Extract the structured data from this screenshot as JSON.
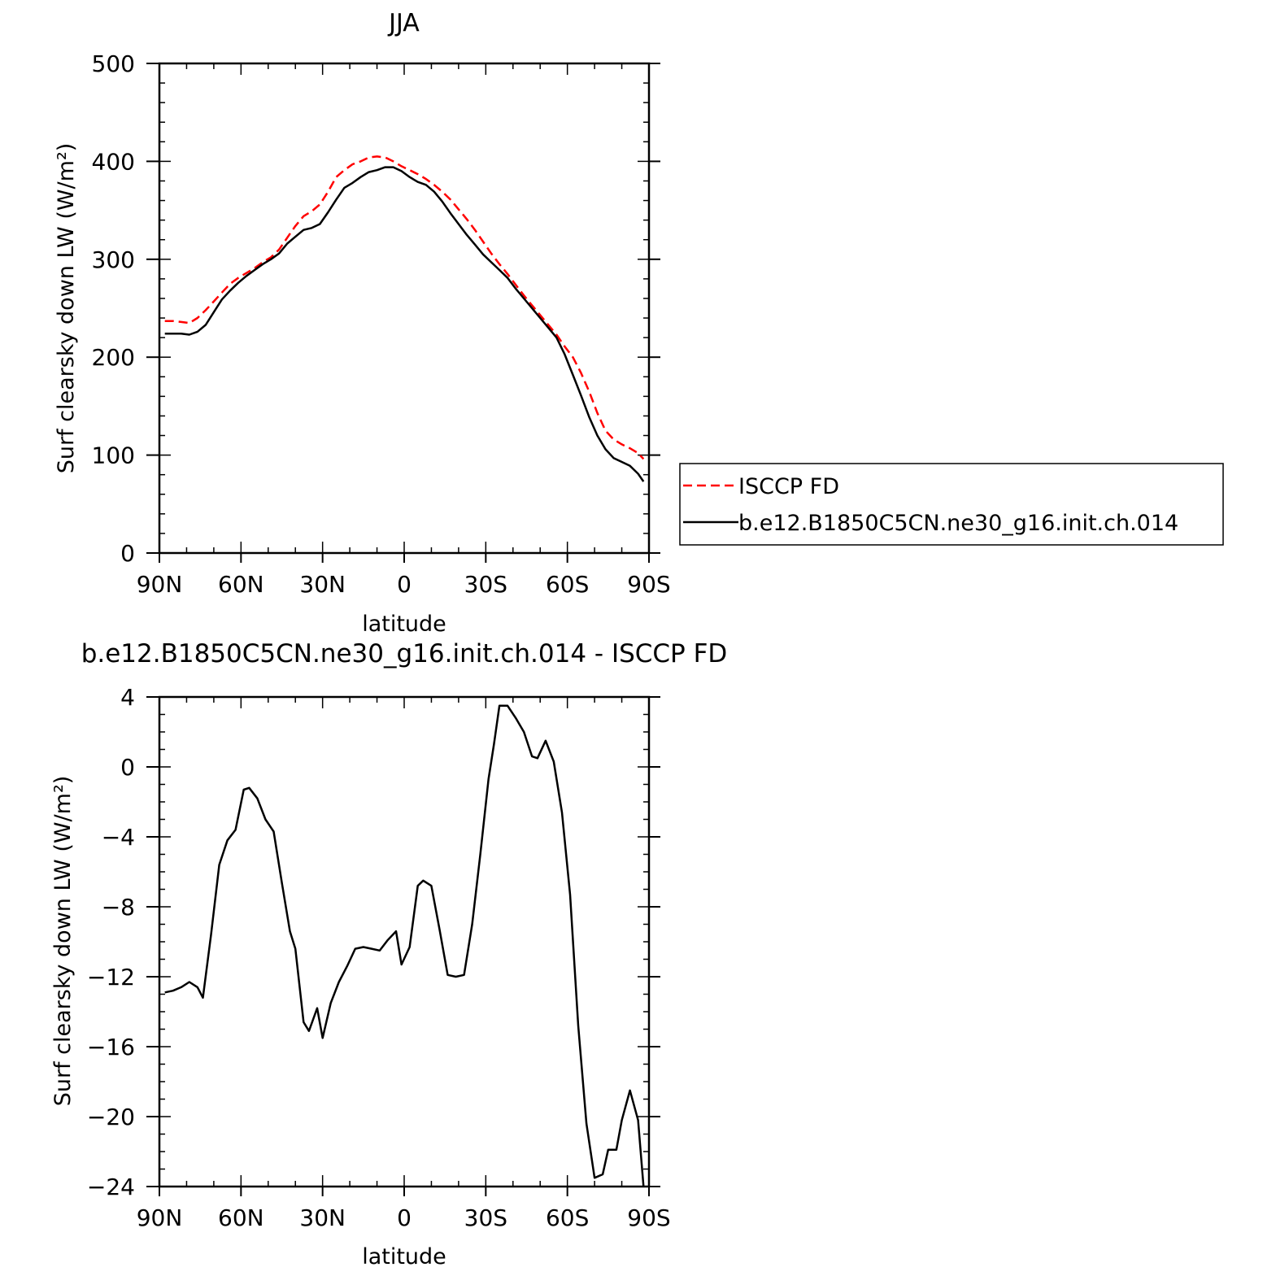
{
  "chart_data": [
    {
      "type": "line",
      "title": "JJA",
      "xlabel": "latitude",
      "ylabel": "Surf clearsky down LW (W/m²)",
      "xlim": [
        -90,
        90
      ],
      "ylim": [
        0,
        500
      ],
      "x_ticks": [
        -90,
        -60,
        -30,
        0,
        30,
        60,
        90
      ],
      "x_tick_labels": [
        "90N",
        "60N",
        "30N",
        "0",
        "30S",
        "60S",
        "90S"
      ],
      "y_ticks": [
        0,
        100,
        200,
        300,
        400,
        500
      ],
      "y_tick_labels": [
        "0",
        "100",
        "200",
        "300",
        "400",
        "500"
      ],
      "legend_position": "right",
      "series": [
        {
          "name": "ISCCP FD",
          "color": "#ff0000",
          "dash": "dashed",
          "x": [
            -88,
            -85,
            -82,
            -79,
            -76,
            -73,
            -70,
            -67,
            -64,
            -61,
            -58,
            -55,
            -52,
            -49,
            -46,
            -43,
            -40,
            -37,
            -34,
            -31,
            -28,
            -25,
            -22,
            -19,
            -16,
            -13,
            -10,
            -7,
            -4,
            -1,
            2,
            5,
            8,
            11,
            14,
            17,
            20,
            23,
            26,
            29,
            32,
            35,
            38,
            41,
            44,
            47,
            50,
            53,
            56,
            59,
            62,
            65,
            68,
            71,
            74,
            77,
            80,
            83,
            86,
            88
          ],
          "y": [
            237,
            237,
            236,
            235,
            240,
            248,
            257,
            266,
            275,
            281,
            286,
            291,
            297,
            302,
            310,
            322,
            334,
            344,
            349,
            356,
            369,
            384,
            391,
            397,
            400,
            404,
            405,
            404,
            400,
            395,
            391,
            387,
            382,
            376,
            369,
            361,
            351,
            341,
            330,
            318,
            306,
            295,
            285,
            274,
            263,
            253,
            243,
            233,
            223,
            211,
            200,
            184,
            165,
            143,
            125,
            116,
            111,
            107,
            102,
            96
          ]
        },
        {
          "name": "b.e12.B1850C5CN.ne30_g16.init.ch.014",
          "color": "#000000",
          "dash": "solid",
          "x": [
            -88,
            -85,
            -82,
            -79,
            -76,
            -73,
            -70,
            -67,
            -64,
            -61,
            -58,
            -55,
            -52,
            -49,
            -46,
            -43,
            -40,
            -37,
            -34,
            -31,
            -28,
            -25,
            -22,
            -19,
            -16,
            -13,
            -10,
            -7,
            -4,
            -1,
            2,
            5,
            8,
            11,
            14,
            17,
            20,
            23,
            26,
            29,
            32,
            35,
            38,
            41,
            44,
            47,
            50,
            53,
            56,
            59,
            62,
            65,
            68,
            71,
            74,
            77,
            80,
            83,
            86,
            88
          ],
          "y": [
            224,
            224,
            224,
            223,
            226,
            233,
            246,
            259,
            268,
            276,
            283,
            289,
            295,
            300,
            306,
            316,
            323,
            330,
            332,
            336,
            348,
            361,
            373,
            378,
            384,
            389,
            391,
            394,
            394,
            390,
            384,
            379,
            376,
            369,
            359,
            347,
            336,
            325,
            315,
            305,
            297,
            289,
            281,
            270,
            260,
            250,
            240,
            230,
            220,
            203,
            182,
            161,
            139,
            120,
            106,
            97,
            93,
            89,
            81,
            73
          ]
        }
      ]
    },
    {
      "type": "line",
      "title": "b.e12.B1850C5CN.ne30_g16.init.ch.014 - ISCCP FD",
      "xlabel": "latitude",
      "ylabel": "Surf clearsky down LW (W/m²)",
      "xlim": [
        -90,
        90
      ],
      "ylim": [
        -24,
        4
      ],
      "x_ticks": [
        -90,
        -60,
        -30,
        0,
        30,
        60,
        90
      ],
      "x_tick_labels": [
        "90N",
        "60N",
        "30N",
        "0",
        "30S",
        "60S",
        "90S"
      ],
      "y_ticks": [
        -24,
        -20,
        -16,
        -12,
        -8,
        -4,
        0,
        4
      ],
      "y_tick_labels": [
        "-24",
        "-20",
        "-16",
        "-12",
        "-8",
        "-4",
        "0",
        "4"
      ],
      "series": [
        {
          "color": "#000000",
          "dash": "solid",
          "x": [
            -88,
            -85,
            -82,
            -79,
            -76,
            -74,
            -71,
            -68,
            -65,
            -62,
            -59,
            -57,
            -54,
            -51,
            -48,
            -45,
            -42,
            -40,
            -37,
            -35,
            -32,
            -30,
            -27,
            -24,
            -21,
            -18,
            -15,
            -12,
            -9,
            -6,
            -3,
            -1,
            2,
            5,
            7,
            10,
            13,
            16,
            19,
            22,
            25,
            28,
            31,
            33,
            35,
            38,
            41,
            44,
            47,
            49,
            52,
            55,
            58,
            61,
            64,
            67,
            70,
            73,
            75,
            78,
            80,
            83,
            86,
            88
          ],
          "y": [
            -12.9,
            -12.8,
            -12.6,
            -12.3,
            -12.6,
            -13.2,
            -9.6,
            -5.6,
            -4.2,
            -3.6,
            -1.3,
            -1.2,
            -1.8,
            -3.0,
            -3.7,
            -6.6,
            -9.4,
            -10.4,
            -14.6,
            -15.1,
            -13.8,
            -15.5,
            -13.5,
            -12.3,
            -11.4,
            -10.4,
            -10.3,
            -10.4,
            -10.5,
            -9.9,
            -9.4,
            -11.3,
            -10.3,
            -6.8,
            -6.5,
            -6.8,
            -9.3,
            -11.9,
            -12.0,
            -11.9,
            -9.0,
            -5.0,
            -0.7,
            1.3,
            3.5,
            3.5,
            2.8,
            2.0,
            0.6,
            0.5,
            1.5,
            0.3,
            -2.6,
            -7.3,
            -14.8,
            -20.4,
            -23.5,
            -23.3,
            -21.9,
            -21.9,
            -20.2,
            -18.5,
            -20.2,
            -24.0
          ]
        }
      ]
    }
  ]
}
